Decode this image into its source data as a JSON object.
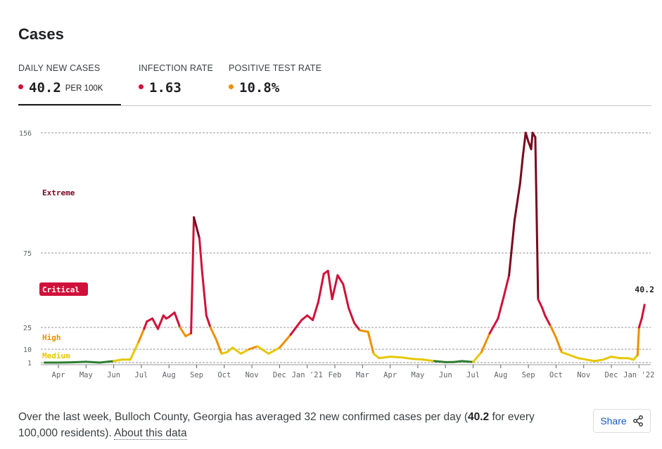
{
  "title": "Cases",
  "metrics": [
    {
      "label": "DAILY NEW CASES",
      "value": "40.2",
      "unit": "PER 100K",
      "color": "#d0103a",
      "active": true
    },
    {
      "label": "INFECTION RATE",
      "value": "1.63",
      "unit": "",
      "color": "#d0103a",
      "active": false
    },
    {
      "label": "POSITIVE TEST RATE",
      "value": "10.8%",
      "unit": "",
      "color": "#ed8f00",
      "active": false
    }
  ],
  "chart_data": {
    "type": "line",
    "xlabel": "",
    "ylabel": "",
    "y_ticks": [
      "156",
      "75",
      "25",
      "10",
      "1"
    ],
    "y_tick_values": [
      156,
      75,
      25,
      10,
      1
    ],
    "x_tick_labels": [
      "Apr",
      "May",
      "Jun",
      "Jul",
      "Aug",
      "Sep",
      "Oct",
      "Nov",
      "Dec",
      "Jan '21",
      "Feb",
      "Mar",
      "Apr",
      "May",
      "Jun",
      "Jul",
      "Aug",
      "Sep",
      "Oct",
      "Nov",
      "Dec",
      "Jan '22"
    ],
    "x_tick_months": [
      0,
      1,
      2,
      3,
      4,
      5,
      6,
      7,
      8,
      9,
      10,
      11,
      12,
      13,
      14,
      15,
      16,
      17,
      18,
      19,
      20,
      21
    ],
    "x_start": "2020-03-15",
    "x_end": "2022-01-01",
    "zones": [
      {
        "label": "Extreme",
        "color": "#7a0720"
      },
      {
        "label": "Critical",
        "color": "#d0103a"
      },
      {
        "label": "High",
        "color": "#ed8f00"
      },
      {
        "label": "Medium",
        "color": "#e6c700"
      }
    ],
    "thresholds": {
      "low": 1,
      "medium": 10,
      "high": 25,
      "critical": 75
    },
    "latest_label": "40.2",
    "series": [
      {
        "x": [
          -0.5,
          0.0,
          0.5,
          1.0,
          1.5,
          2.0,
          2.3,
          2.6,
          2.9,
          3.1,
          3.2,
          3.4,
          3.6,
          3.8,
          3.9,
          4.0,
          4.2,
          4.4,
          4.6,
          4.8,
          4.9,
          5.0,
          5.1,
          5.2,
          5.35,
          5.5,
          5.7,
          5.9,
          6.1,
          6.3,
          6.6,
          6.9,
          7.2,
          7.6,
          8.0,
          8.4,
          8.8,
          9.0,
          9.2,
          9.4,
          9.6,
          9.75,
          9.9,
          10.1,
          10.3,
          10.5,
          10.7,
          10.9,
          11.2,
          11.4,
          11.6,
          12.0,
          12.4,
          12.8,
          13.2,
          13.6,
          14.0,
          14.3,
          14.6,
          15.0,
          15.3,
          15.6,
          15.9,
          16.1,
          16.3,
          16.5,
          16.7,
          16.8,
          16.9,
          17.0,
          17.1,
          17.15,
          17.25,
          17.35,
          17.5,
          17.6,
          17.8,
          18.0,
          18.2,
          18.5,
          18.8,
          19.1,
          19.4,
          19.7,
          20.0,
          20.3,
          20.6,
          20.8,
          20.95,
          21.0,
          21.1,
          21.2
        ],
        "y": [
          1,
          1,
          1.2,
          1.5,
          1,
          2,
          3,
          3,
          15,
          24,
          29,
          31,
          24,
          33,
          31,
          32,
          35,
          25,
          19,
          21,
          99,
          92,
          85,
          62,
          33,
          25,
          17,
          7,
          8,
          11,
          7,
          10,
          12,
          7,
          11,
          20,
          30,
          33,
          30,
          42,
          61,
          63,
          44,
          60,
          54,
          38,
          28,
          23,
          22,
          7,
          4,
          5,
          4.5,
          3.5,
          3,
          2,
          1.3,
          1.4,
          2,
          1.4,
          8,
          21,
          31,
          45,
          60,
          97,
          122,
          140,
          156,
          150,
          145,
          156,
          153,
          44,
          38,
          33,
          26,
          18,
          8,
          6,
          4,
          3,
          2,
          3,
          5,
          4,
          4,
          3,
          6,
          25,
          31,
          40.2
        ]
      }
    ]
  },
  "footer": {
    "text_before": "Over the last week, Bulloch County, Georgia has averaged 32 new confirmed cases per day (",
    "bold_value": "40.2",
    "text_after": " for every 100,000 residents). ",
    "link": "About this data"
  },
  "share": {
    "label": "Share",
    "icon": "share-icon"
  }
}
